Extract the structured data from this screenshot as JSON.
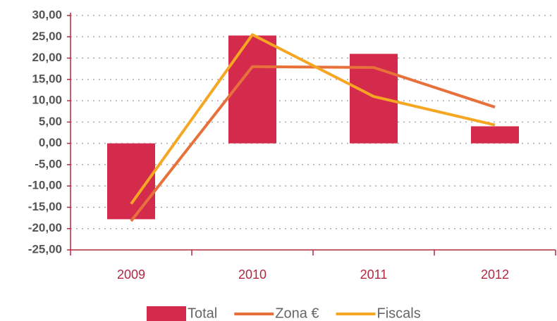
{
  "chart_data": {
    "type": "bar",
    "categories": [
      "2009",
      "2010",
      "2011",
      "2012"
    ],
    "series": [
      {
        "name": "Total",
        "type": "bar",
        "color": "#d42a4c",
        "values": [
          -17.8,
          25.3,
          21.0,
          4.0
        ]
      },
      {
        "name": "Zona €",
        "type": "line",
        "color": "#e8703a",
        "values": [
          -18.2,
          18.0,
          17.8,
          8.5
        ]
      },
      {
        "name": "Fiscals",
        "type": "line",
        "color": "#f5a623",
        "values": [
          -14.2,
          25.5,
          11.0,
          4.3
        ]
      }
    ],
    "ylim": [
      -25,
      30
    ],
    "yticks": [
      {
        "value": -25,
        "label": "-25,00"
      },
      {
        "value": -20,
        "label": "-20,00"
      },
      {
        "value": -15,
        "label": "-15,00"
      },
      {
        "value": -10,
        "label": "-10,00"
      },
      {
        "value": -5,
        "label": "-5,00"
      },
      {
        "value": 0,
        "label": "0,00"
      },
      {
        "value": 5,
        "label": "5,00"
      },
      {
        "value": 10,
        "label": "10,00"
      },
      {
        "value": 15,
        "label": "15,00"
      },
      {
        "value": 20,
        "label": "20,00"
      },
      {
        "value": 25,
        "label": "25,00"
      },
      {
        "value": 30,
        "label": "30,00"
      }
    ],
    "grid": true,
    "legend": "bottom"
  }
}
